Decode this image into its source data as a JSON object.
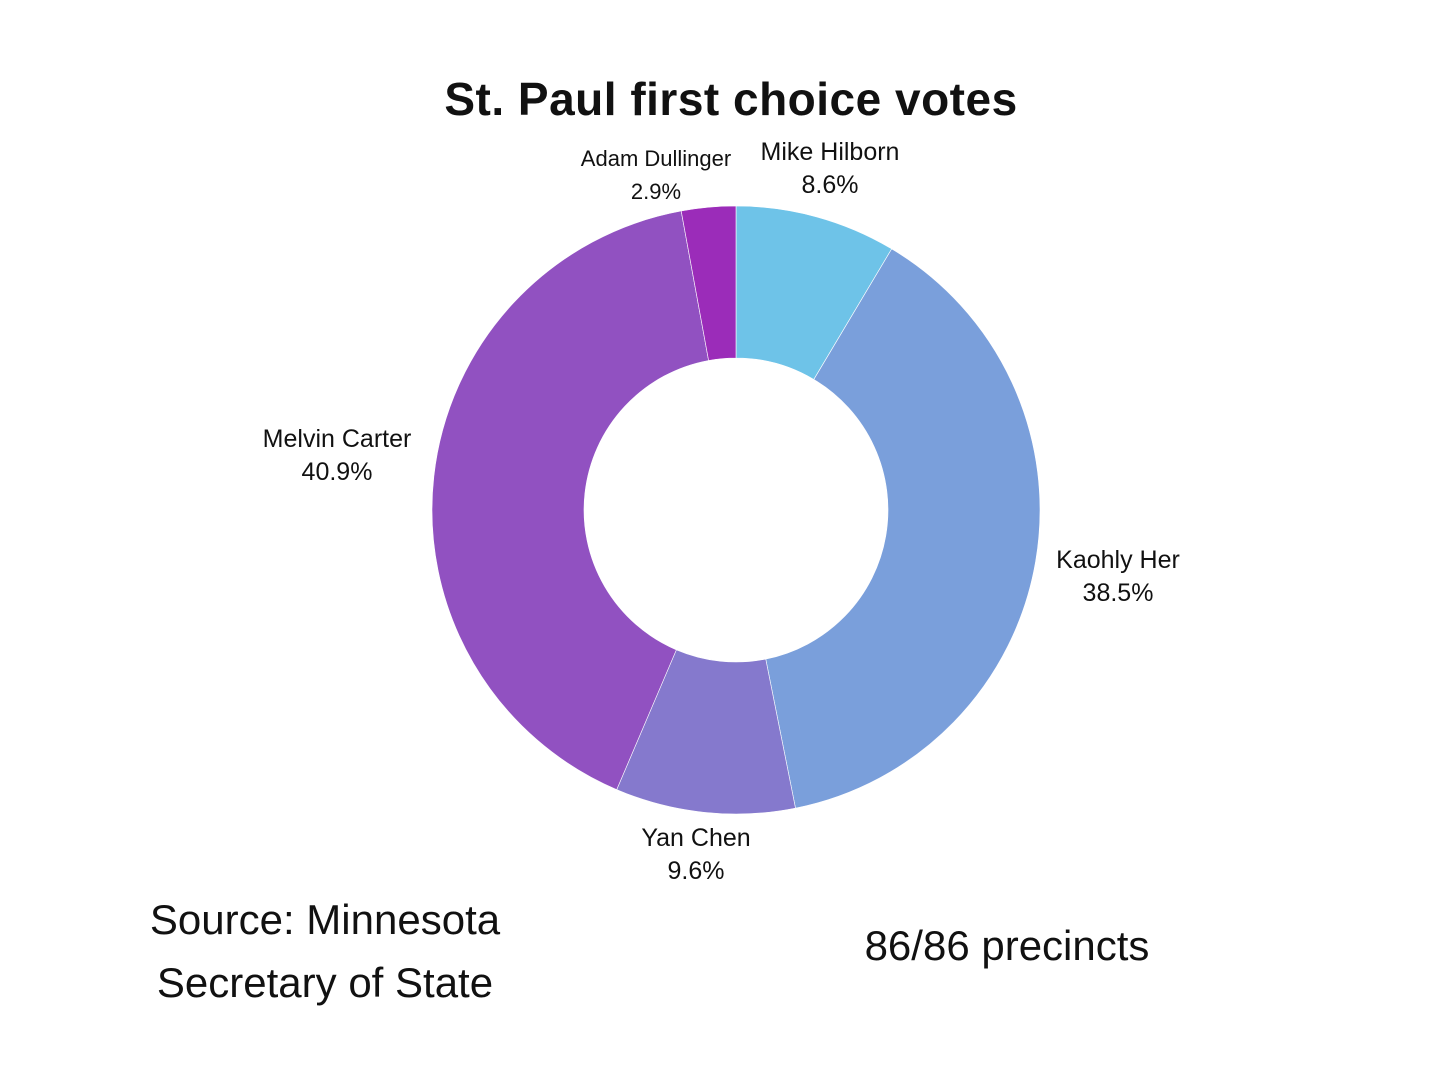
{
  "chart_data": {
    "type": "pie",
    "variant": "donut",
    "title": "St. Paul first choice votes",
    "slices": [
      {
        "label": "Mike Hilborn",
        "value": 8.6,
        "value_label": "8.6%",
        "color": "#6EC3E8"
      },
      {
        "label": "Kaohly Her",
        "value": 38.5,
        "value_label": "38.5%",
        "color": "#7A9FDB"
      },
      {
        "label": "Yan Chen",
        "value": 9.6,
        "value_label": "9.6%",
        "color": "#8579CD"
      },
      {
        "label": "Melvin Carter",
        "value": 40.9,
        "value_label": "40.9%",
        "color": "#9151C1"
      },
      {
        "label": "Adam Dullinger",
        "value": 2.9,
        "value_label": "2.9%",
        "color": "#9B2CB9"
      }
    ],
    "start": "top, clockwise",
    "legend": "none"
  },
  "annotations": {
    "source": "Source: Minnesota Secretary of State",
    "source_line1": "Source: Minnesota",
    "source_line2": "Secretary of State",
    "precincts": "86/86 precincts"
  }
}
